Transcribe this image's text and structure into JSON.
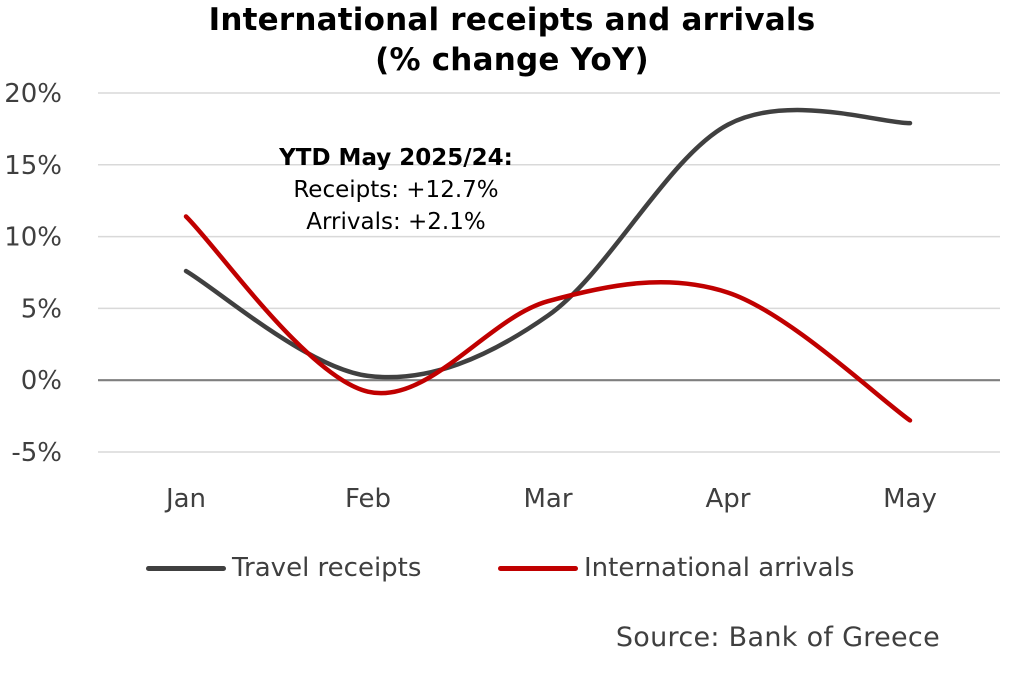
{
  "chart_data": {
    "type": "line",
    "title_line1": "International receipts and arrivals",
    "title_line2": "(% change YoY)",
    "categories": [
      "Jan",
      "Feb",
      "Mar",
      "Apr",
      "May"
    ],
    "y_ticks": [
      "20%",
      "15%",
      "10%",
      "5%",
      "0%",
      "-5%"
    ],
    "y_tick_values": [
      20,
      15,
      10,
      5,
      0,
      -5
    ],
    "ylim": [
      -5,
      20
    ],
    "grid": true,
    "smooth": true,
    "series": [
      {
        "name": "Travel receipts",
        "color": "#404040",
        "values": [
          7.6,
          0.3,
          4.5,
          17.8,
          17.9
        ]
      },
      {
        "name": "International arrivals",
        "color": "#c00000",
        "values": [
          11.4,
          -0.8,
          5.5,
          6.1,
          -2.8
        ]
      }
    ],
    "annotation": {
      "heading": "YTD May 2025/24:",
      "receipts": "Receipts: +12.7%",
      "arrivals": "Arrivals: +2.1%"
    },
    "legend_position": "bottom",
    "source": "Source: Bank of Greece"
  }
}
